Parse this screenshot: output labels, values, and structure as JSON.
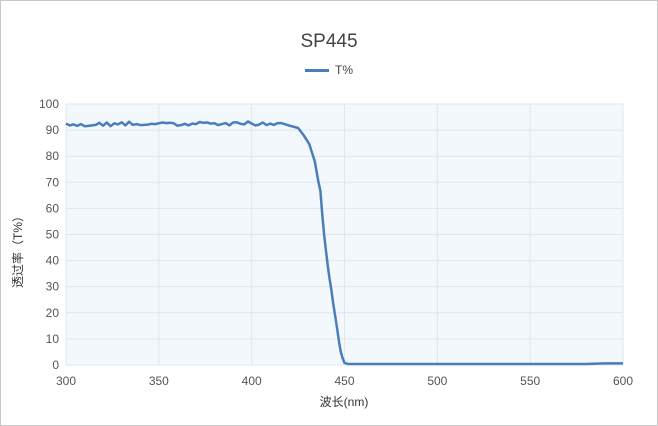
{
  "chart_data": {
    "type": "line",
    "title": "SP445",
    "xlabel": "波长(nm)",
    "ylabel": "透过率（T%）",
    "xlim": [
      300,
      600
    ],
    "ylim": [
      0,
      100
    ],
    "xticks": [
      300,
      350,
      400,
      450,
      500,
      550,
      600
    ],
    "yticks": [
      0,
      10,
      20,
      30,
      40,
      50,
      60,
      70,
      80,
      90,
      100
    ],
    "grid": true,
    "legend_position": "top-center",
    "series": [
      {
        "name": "T%",
        "color": "#4a7ebb",
        "x": [
          300,
          302,
          304,
          306,
          308,
          310,
          312,
          314,
          316,
          318,
          320,
          322,
          324,
          326,
          328,
          330,
          332,
          334,
          336,
          338,
          340,
          342,
          344,
          346,
          348,
          350,
          352,
          354,
          356,
          358,
          360,
          362,
          364,
          366,
          368,
          370,
          372,
          374,
          376,
          378,
          380,
          382,
          384,
          386,
          388,
          390,
          392,
          394,
          396,
          398,
          400,
          402,
          404,
          406,
          408,
          410,
          412,
          414,
          416,
          420,
          425,
          428,
          431,
          434,
          436,
          437,
          438,
          439,
          440,
          441,
          442,
          443,
          444,
          445,
          446,
          447,
          448,
          449,
          450,
          452,
          455,
          460,
          480,
          500,
          520,
          540,
          560,
          580,
          590,
          600
        ],
        "y": [
          92.5,
          91.8,
          92.2,
          91.6,
          92.3,
          91.5,
          91.6,
          91.8,
          92.0,
          92.8,
          91.7,
          92.9,
          91.5,
          92.6,
          92.2,
          93.0,
          91.8,
          93.2,
          92.0,
          92.3,
          91.9,
          92.0,
          92.1,
          92.4,
          92.3,
          92.6,
          92.9,
          92.7,
          92.8,
          92.6,
          91.7,
          91.9,
          92.4,
          91.8,
          92.5,
          92.3,
          93.1,
          92.8,
          92.9,
          92.5,
          92.6,
          91.9,
          92.3,
          92.7,
          91.8,
          92.9,
          93.0,
          92.4,
          92.2,
          93.3,
          92.5,
          91.8,
          92.1,
          92.9,
          91.9,
          92.5,
          92.0,
          92.7,
          92.7,
          91.8,
          90.8,
          88.0,
          84.7,
          78.0,
          70.0,
          66.7,
          58.0,
          50.0,
          44.0,
          37.9,
          33.0,
          28.4,
          23.0,
          18.8,
          14.0,
          9.2,
          5.0,
          2.7,
          0.8,
          0.4,
          0.4,
          0.4,
          0.4,
          0.4,
          0.4,
          0.4,
          0.4,
          0.4,
          0.6,
          0.6
        ]
      }
    ]
  }
}
